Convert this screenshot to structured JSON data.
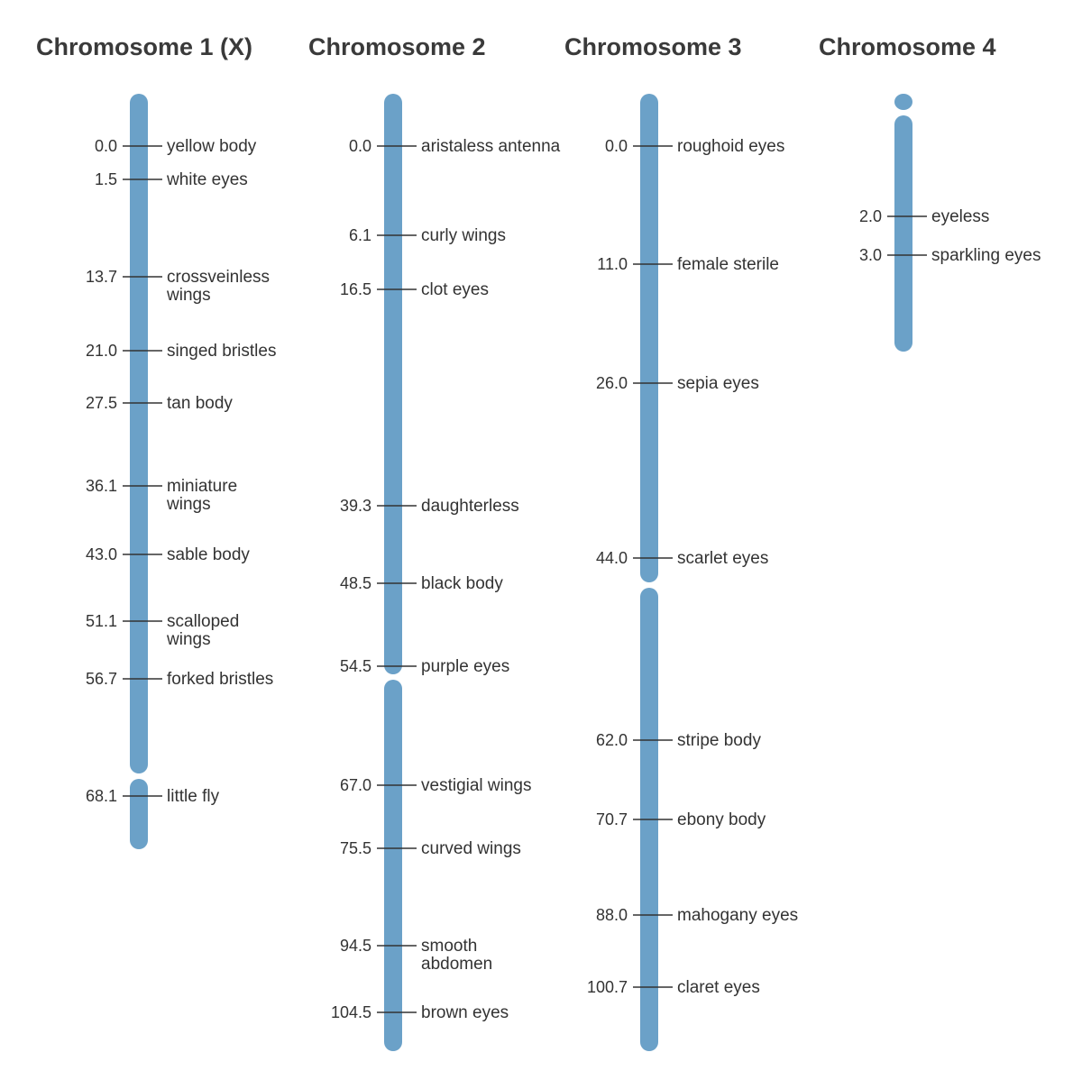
{
  "colors": {
    "chromosome": "#6ba1c8",
    "text": "#333333",
    "title": "#3a3a3a"
  },
  "chromosomes": [
    {
      "title": "Chromosome 1 (X)",
      "loci": [
        {
          "pos": "0.0",
          "label": [
            "yellow body"
          ]
        },
        {
          "pos": "1.5",
          "label": [
            "white eyes"
          ]
        },
        {
          "pos": "13.7",
          "label": [
            "crossveinless",
            "wings"
          ]
        },
        {
          "pos": "21.0",
          "label": [
            "singed bristles"
          ]
        },
        {
          "pos": "27.5",
          "label": [
            "tan body"
          ]
        },
        {
          "pos": "36.1",
          "label": [
            "miniature",
            "wings"
          ]
        },
        {
          "pos": "43.0",
          "label": [
            "sable body"
          ]
        },
        {
          "pos": "51.1",
          "label": [
            "scalloped",
            "wings"
          ]
        },
        {
          "pos": "56.7",
          "label": [
            "forked bristles"
          ]
        },
        {
          "pos": "68.1",
          "label": [
            "little fly"
          ]
        }
      ]
    },
    {
      "title": "Chromosome 2",
      "loci": [
        {
          "pos": "0.0",
          "label": [
            "aristaless antenna"
          ]
        },
        {
          "pos": "6.1",
          "label": [
            "curly wings"
          ]
        },
        {
          "pos": "16.5",
          "label": [
            "clot eyes"
          ]
        },
        {
          "pos": "39.3",
          "label": [
            "daughterless"
          ]
        },
        {
          "pos": "48.5",
          "label": [
            "black body"
          ]
        },
        {
          "pos": "54.5",
          "label": [
            "purple eyes"
          ]
        },
        {
          "pos": "67.0",
          "label": [
            "vestigial wings"
          ]
        },
        {
          "pos": "75.5",
          "label": [
            "curved wings"
          ]
        },
        {
          "pos": "94.5",
          "label": [
            "smooth",
            "abdomen"
          ]
        },
        {
          "pos": "104.5",
          "label": [
            "brown eyes"
          ]
        }
      ]
    },
    {
      "title": "Chromosome 3",
      "loci": [
        {
          "pos": "0.0",
          "label": [
            "roughoid eyes"
          ]
        },
        {
          "pos": "11.0",
          "label": [
            "female sterile"
          ]
        },
        {
          "pos": "26.0",
          "label": [
            "sepia eyes"
          ]
        },
        {
          "pos": "44.0",
          "label": [
            "scarlet eyes"
          ]
        },
        {
          "pos": "62.0",
          "label": [
            "stripe body"
          ]
        },
        {
          "pos": "70.7",
          "label": [
            "ebony body"
          ]
        },
        {
          "pos": "88.0",
          "label": [
            "mahogany eyes"
          ]
        },
        {
          "pos": "100.7",
          "label": [
            "claret eyes"
          ]
        }
      ]
    },
    {
      "title": "Chromosome 4",
      "loci": [
        {
          "pos": "2.0",
          "label": [
            "eyeless"
          ]
        },
        {
          "pos": "3.0",
          "label": [
            "sparkling eyes"
          ]
        }
      ]
    }
  ]
}
